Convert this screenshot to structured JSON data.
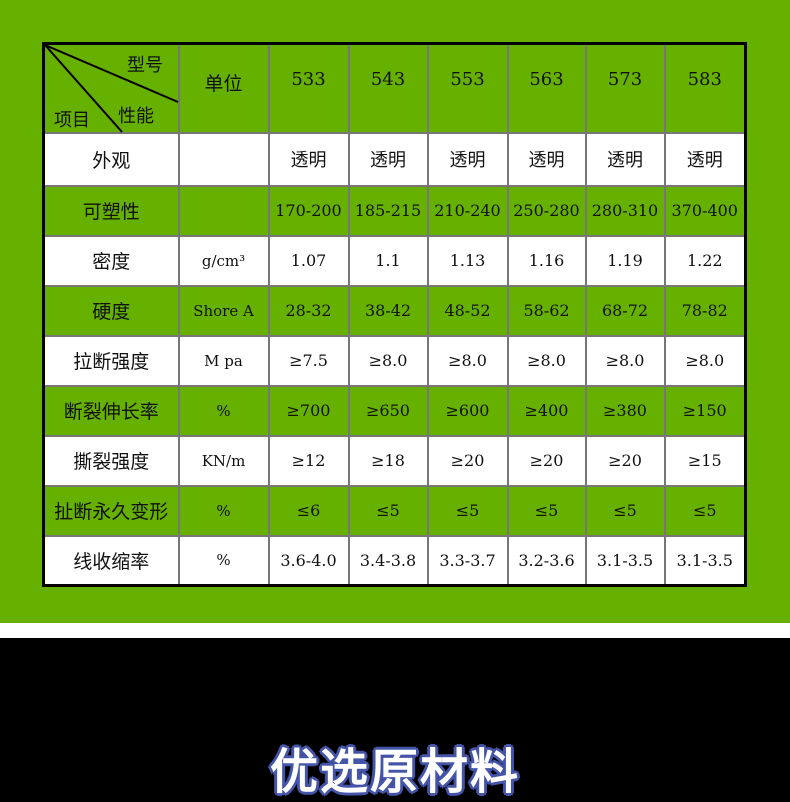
{
  "header": {
    "model_label": "型号",
    "property_label": "性能",
    "item_label": "项目",
    "unit_label": "单位",
    "models": [
      "533",
      "543",
      "553",
      "563",
      "573",
      "583"
    ]
  },
  "rows": [
    {
      "name": "外观",
      "unit": "",
      "values": [
        "透明",
        "透明",
        "透明",
        "透明",
        "透明",
        "透明"
      ],
      "bg": "white"
    },
    {
      "name": "可塑性",
      "unit": "",
      "values": [
        "170-200",
        "185-215",
        "210-240",
        "250-280",
        "280-310",
        "370-400"
      ],
      "bg": "green"
    },
    {
      "name": "密度",
      "unit": "g/cm³",
      "values": [
        "1.07",
        "1.1",
        "1.13",
        "1.16",
        "1.19",
        "1.22"
      ],
      "bg": "white"
    },
    {
      "name": "硬度",
      "unit": "Shore A",
      "values": [
        "28-32",
        "38-42",
        "48-52",
        "58-62",
        "68-72",
        "78-82"
      ],
      "bg": "green"
    },
    {
      "name": "拉断强度",
      "unit": "M pa",
      "values": [
        "≥7.5",
        "≥8.0",
        "≥8.0",
        "≥8.0",
        "≥8.0",
        "≥8.0"
      ],
      "bg": "white"
    },
    {
      "name": "断裂伸长率",
      "unit": "%",
      "values": [
        "≥700",
        "≥650",
        "≥600",
        "≥400",
        "≥380",
        "≥150"
      ],
      "bg": "green"
    },
    {
      "name": "撕裂强度",
      "unit": "KN/m",
      "values": [
        "≥12",
        "≥18",
        "≥20",
        "≥20",
        "≥20",
        "≥15"
      ],
      "bg": "white"
    },
    {
      "name": "扯断永久变形",
      "unit": "%",
      "values": [
        "≤6",
        "≤5",
        "≤5",
        "≤5",
        "≤5",
        "≤5"
      ],
      "bg": "green"
    },
    {
      "name": "线收缩率",
      "unit": "%",
      "values": [
        "3.6-4.0",
        "3.4-3.8",
        "3.3-3.7",
        "3.2-3.6",
        "3.1-3.5",
        "3.1-3.5"
      ],
      "bg": "white"
    }
  ],
  "colors": {
    "green": "#66b000",
    "title_outline": "#4454a8"
  },
  "banner": {
    "title": "优选原材料"
  }
}
